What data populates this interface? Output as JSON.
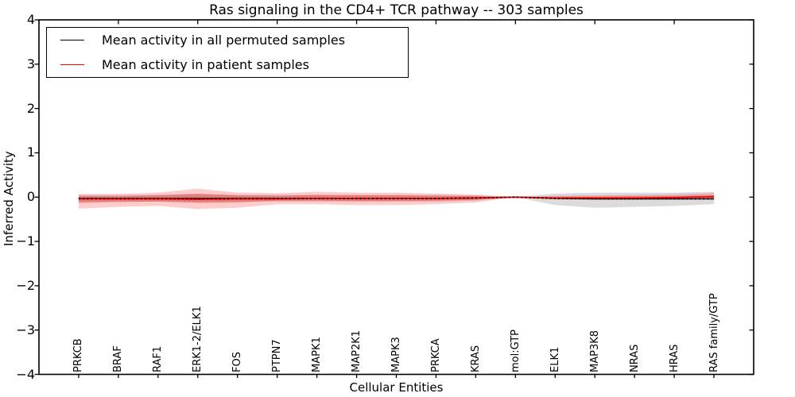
{
  "title": "Ras signaling in the CD4+ TCR pathway -- 303 samples",
  "xlabel": "Cellular Entities",
  "ylabel": "Inferred Activity",
  "colors": {
    "permuted_line": "#000000",
    "patient_line": "#ff0000",
    "permuted_band": "rgba(110,110,110,0.25)",
    "patient_band": "rgba(255,0,0,0.20)",
    "patient_band_inner": "rgba(220,0,0,0.28)",
    "frame": "#000000",
    "background": "#ffffff"
  },
  "chart_data": {
    "type": "line",
    "title": "Ras signaling in the CD4+ TCR pathway -- 303 samples",
    "xlabel": "Cellular Entities",
    "ylabel": "Inferred Activity",
    "ylim": [
      -4,
      4
    ],
    "yticks": [
      4,
      3,
      2,
      1,
      0,
      -1,
      -2,
      -3,
      -4
    ],
    "grid": false,
    "legend_position": "upper left",
    "categories": [
      "PRKCB",
      "BRAF",
      "RAF1",
      "ERK1-2/ELK1",
      "FOS",
      "PTPN7",
      "MAPK1",
      "MAP2K1",
      "MAPK3",
      "PRKCA",
      "KRAS",
      "mol:GTP",
      "ELK1",
      "MAP3K8",
      "NRAS",
      "HRAS",
      "RAS family/GTP"
    ],
    "series": [
      {
        "name": "Mean activity in all permuted samples",
        "color": "#000000",
        "line_style": "solid-with-dotted-overlay",
        "values": [
          -0.03,
          -0.03,
          -0.03,
          -0.03,
          -0.03,
          -0.03,
          -0.03,
          -0.03,
          -0.03,
          -0.03,
          -0.02,
          0.0,
          -0.03,
          -0.04,
          -0.04,
          -0.04,
          -0.04
        ],
        "band_upper": [
          0.05,
          0.05,
          0.05,
          0.06,
          0.05,
          0.05,
          0.05,
          0.05,
          0.05,
          0.05,
          0.04,
          0.0,
          0.08,
          0.1,
          0.1,
          0.1,
          0.12
        ],
        "band_lower": [
          -0.1,
          -0.1,
          -0.1,
          -0.11,
          -0.1,
          -0.1,
          -0.1,
          -0.1,
          -0.1,
          -0.1,
          -0.08,
          0.0,
          -0.18,
          -0.24,
          -0.22,
          -0.2,
          -0.16
        ]
      },
      {
        "name": "Mean activity in patient samples",
        "color": "#ff0000",
        "line_style": "solid",
        "values": [
          -0.04,
          -0.04,
          -0.04,
          -0.05,
          -0.04,
          -0.04,
          -0.03,
          -0.03,
          -0.03,
          -0.03,
          -0.02,
          0.0,
          -0.02,
          -0.02,
          -0.02,
          -0.01,
          0.01
        ],
        "band_upper": [
          0.07,
          0.07,
          0.1,
          0.19,
          0.1,
          0.09,
          0.12,
          0.1,
          0.1,
          0.08,
          0.06,
          0.0,
          0.03,
          0.04,
          0.05,
          0.06,
          0.09
        ],
        "band_lower": [
          -0.26,
          -0.22,
          -0.2,
          -0.27,
          -0.24,
          -0.16,
          -0.16,
          -0.18,
          -0.18,
          -0.16,
          -0.12,
          0.0,
          -0.05,
          -0.06,
          -0.06,
          -0.05,
          -0.04
        ],
        "band_inner_upper": [
          0.02,
          0.02,
          0.04,
          0.08,
          0.04,
          0.03,
          0.05,
          0.04,
          0.04,
          0.03,
          0.02,
          0.0,
          0.01,
          0.01,
          0.02,
          0.02,
          0.04
        ],
        "band_inner_lower": [
          -0.13,
          -0.11,
          -0.1,
          -0.13,
          -0.12,
          -0.08,
          -0.08,
          -0.09,
          -0.09,
          -0.08,
          -0.06,
          0.0,
          -0.02,
          -0.03,
          -0.03,
          -0.02,
          -0.02
        ]
      }
    ]
  }
}
